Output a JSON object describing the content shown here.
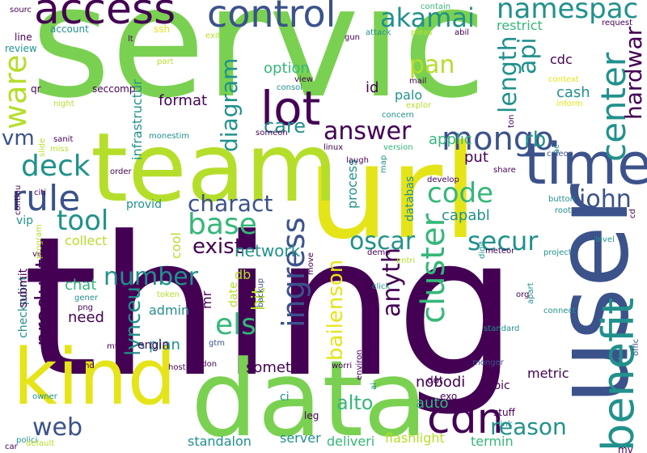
{
  "colors": {
    "background": "#ffffff",
    "dark_purple": "#440154",
    "indigo": "#3b528b",
    "blue": "#31688e",
    "teal": "#21918c",
    "sea_green": "#35b779",
    "green": "#7ad151",
    "lime": "#b5de2b",
    "yellow": "#e5e419"
  },
  "words": [
    "thing",
    "servic",
    "url",
    "user",
    "data",
    "team",
    "kind",
    "time",
    "access",
    "control",
    "benefit",
    "lot",
    "center",
    "cdn",
    "rule",
    "deck",
    "mongo",
    "answer",
    "code",
    "cluster",
    "ingress",
    "base",
    "john",
    "tool",
    "charact",
    "number",
    "secur",
    "reason",
    "web",
    "oscar",
    "ware",
    "vm",
    "els",
    "namespac",
    "akamai",
    "api",
    "pan",
    "diagram",
    "length",
    "hardwar",
    "anyth",
    "product",
    "lynceu",
    "exist",
    "bailenson",
    "rb",
    "care",
    "auto",
    "alto",
    "network",
    "cash",
    "applic",
    "put",
    "capabl",
    "option",
    "format",
    "infrastructur",
    "hit",
    "chat",
    "need",
    "admin",
    "plan",
    "someth",
    "standalon",
    "server",
    "deliveri",
    "flashlight",
    "termin",
    "nobodi",
    "metric",
    "collect",
    "db",
    "cool",
    "mr",
    "date",
    "id",
    "palo",
    "restrict",
    "cdc",
    "process",
    "databas",
    "provid",
    "engin",
    "checkpoint",
    "submit",
    "vip",
    "ci",
    "leg",
    "stuff",
    "choic",
    "dot",
    "exo",
    "seccomp",
    "qr",
    "line",
    "account",
    "review",
    "ssh",
    "lt",
    "sourc",
    "contain",
    "request",
    "pleas",
    "abil",
    "attack",
    "gun",
    "exit",
    "part",
    "consol",
    "view",
    "mail",
    "explor",
    "concern",
    "version",
    "linux",
    "laugh",
    "develop",
    "share",
    "caleon",
    "context",
    "inform",
    "ton",
    "cd",
    "level",
    "project",
    "meteor",
    "connect",
    "apart",
    "org",
    "standard",
    "offic",
    "click",
    "demo",
    "backup",
    "move",
    "gtm",
    "mfi",
    "host",
    "landon",
    "end",
    "worri",
    "environ",
    "polici",
    "owner",
    "default",
    "car",
    "sanit",
    "miss",
    "slide",
    "continu",
    "citi",
    "order",
    "night",
    "monestim",
    "someon",
    "map",
    "digit",
    "entri",
    "root",
    "button",
    "token",
    "gener",
    "png",
    "vehicl",
    "program",
    "ai",
    "ac",
    "monger",
    "link",
    "mv"
  ]
}
